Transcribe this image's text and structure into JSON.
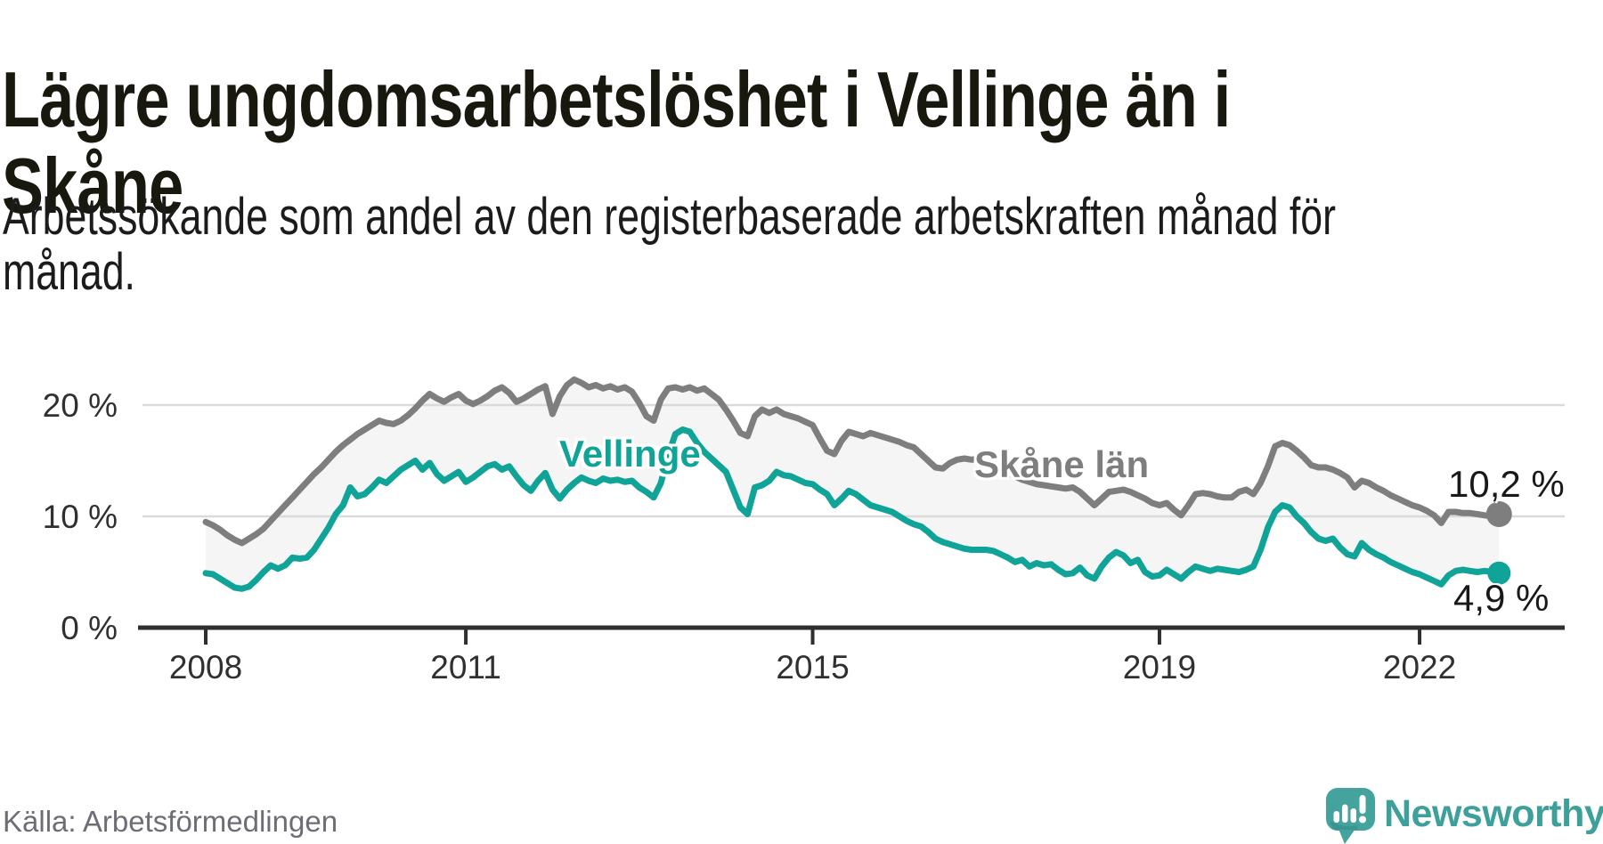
{
  "header": {
    "title_line1": "Lägre ungdomsarbetslöshet i Vellinge än i",
    "title_line2": "Skåne",
    "subtitle_line1": "Arbetssökande som andel av den registerbaserade arbetskraften månad för",
    "subtitle_line2": "månad."
  },
  "footer": {
    "source": "Källa: Arbetsförmedlingen",
    "brand": "Newsworthy"
  },
  "colors": {
    "vellinge_teal": "#10a398",
    "skane_gray": "#7e7e7e",
    "fill_between": "#f5f5f5",
    "gridline": "#dadada",
    "axis": "#2f2f2f",
    "axis_text": "#303030",
    "title_text": "#18180f",
    "source_text": "#6d6d76",
    "brand_teal": "#45a39e"
  },
  "chart_data": {
    "type": "line",
    "title": "Lägre ungdomsarbetslöshet i Vellinge än i Skåne",
    "subtitle": "Arbetssökande som andel av den registerbaserade arbetskraften månad för månad.",
    "x_unit": "month",
    "x_start": "2008-01",
    "x_end": "2022-12",
    "grid": "horizontal",
    "legend_position": "inline-labels",
    "ylim": [
      0,
      24
    ],
    "x_ticks": [
      {
        "year": 2008,
        "label": "2008"
      },
      {
        "year": 2011,
        "label": "2011"
      },
      {
        "year": 2015,
        "label": "2015"
      },
      {
        "year": 2019,
        "label": "2019"
      },
      {
        "year": 2022,
        "label": "2022"
      }
    ],
    "y_ticks": [
      {
        "value": 0,
        "label": "0 %"
      },
      {
        "value": 10,
        "label": "10 %"
      },
      {
        "value": 20,
        "label": "20 %"
      }
    ],
    "series": [
      {
        "name": "Skåne län",
        "color": "#7e7e7e",
        "end_label": "10,2 %",
        "end_value": 10.2,
        "values": [
          9.5,
          9.2,
          8.8,
          8.3,
          7.9,
          7.6,
          8.0,
          8.4,
          8.9,
          9.6,
          10.3,
          11.0,
          11.7,
          12.4,
          13.1,
          13.8,
          14.4,
          15.1,
          15.8,
          16.4,
          16.9,
          17.4,
          17.8,
          18.2,
          18.6,
          18.4,
          18.3,
          18.6,
          19.1,
          19.7,
          20.4,
          21.0,
          20.6,
          20.3,
          20.7,
          21.0,
          20.4,
          20.1,
          20.4,
          20.8,
          21.3,
          21.6,
          21.1,
          20.3,
          20.6,
          21.0,
          21.4,
          21.7,
          19.2,
          20.8,
          21.8,
          22.3,
          22.0,
          21.6,
          21.8,
          21.5,
          21.7,
          21.4,
          21.6,
          21.2,
          20.2,
          19.0,
          18.6,
          20.5,
          21.5,
          21.6,
          21.4,
          21.6,
          21.3,
          21.5,
          21.0,
          20.5,
          19.6,
          18.6,
          17.5,
          17.2,
          19.0,
          19.6,
          19.3,
          19.6,
          19.2,
          19.0,
          18.8,
          18.5,
          18.2,
          17.0,
          15.9,
          15.6,
          16.8,
          17.6,
          17.4,
          17.2,
          17.5,
          17.3,
          17.1,
          16.9,
          16.7,
          16.4,
          16.2,
          15.6,
          15.0,
          14.4,
          14.3,
          14.8,
          15.1,
          15.2,
          15.1,
          15.2,
          15.1,
          14.7,
          14.3,
          13.9,
          13.6,
          13.3,
          13.1,
          12.9,
          12.8,
          12.7,
          12.6,
          12.5,
          12.6,
          12.2,
          11.6,
          11.0,
          11.6,
          12.2,
          12.3,
          12.4,
          12.2,
          11.9,
          11.6,
          11.2,
          11.0,
          11.2,
          10.6,
          10.1,
          11.0,
          12.0,
          12.1,
          12.0,
          11.8,
          11.7,
          11.7,
          12.2,
          12.4,
          12.0,
          13.0,
          14.5,
          16.3,
          16.6,
          16.4,
          15.9,
          15.3,
          14.6,
          14.4,
          14.4,
          14.2,
          13.9,
          13.5,
          12.6,
          13.2,
          13.0,
          12.6,
          12.3,
          11.9,
          11.6,
          11.3,
          11.0,
          10.8,
          10.5,
          10.1,
          9.4,
          10.4,
          10.4,
          10.3,
          10.3,
          10.2,
          10.1,
          10.0,
          10.2
        ]
      },
      {
        "name": "Vellinge",
        "color": "#10a398",
        "end_label": "4,9 %",
        "end_value": 4.9,
        "values": [
          4.9,
          4.8,
          4.4,
          4.0,
          3.6,
          3.5,
          3.7,
          4.3,
          5.0,
          5.6,
          5.3,
          5.6,
          6.3,
          6.2,
          6.3,
          7.0,
          8.0,
          9.0,
          10.2,
          11.0,
          12.6,
          11.8,
          12.0,
          12.6,
          13.3,
          13.0,
          13.6,
          14.2,
          14.6,
          15.0,
          14.2,
          14.8,
          13.8,
          13.2,
          13.6,
          14.0,
          13.1,
          13.5,
          14.0,
          14.5,
          14.7,
          14.2,
          14.5,
          13.6,
          12.8,
          12.3,
          13.2,
          13.9,
          12.4,
          11.6,
          12.4,
          13.0,
          13.5,
          13.2,
          13.0,
          13.4,
          13.2,
          13.3,
          13.1,
          13.2,
          12.6,
          12.2,
          11.7,
          13.0,
          15.5,
          17.4,
          17.8,
          17.6,
          16.6,
          15.8,
          15.2,
          14.6,
          14.0,
          12.4,
          10.8,
          10.2,
          12.6,
          12.8,
          13.2,
          14.0,
          13.7,
          13.6,
          13.3,
          13.0,
          12.9,
          12.4,
          12.0,
          11.0,
          11.6,
          12.3,
          12.0,
          11.5,
          11.0,
          10.8,
          10.6,
          10.4,
          10.0,
          9.6,
          9.3,
          9.1,
          8.6,
          8.0,
          7.7,
          7.5,
          7.3,
          7.1,
          7.0,
          7.0,
          7.0,
          6.9,
          6.6,
          6.3,
          5.9,
          6.1,
          5.5,
          5.8,
          5.6,
          5.7,
          5.2,
          4.8,
          4.9,
          5.4,
          4.7,
          4.4,
          5.5,
          6.3,
          6.8,
          6.5,
          5.8,
          6.1,
          5.0,
          4.6,
          4.7,
          5.2,
          4.8,
          4.4,
          5.0,
          5.5,
          5.3,
          5.1,
          5.3,
          5.2,
          5.1,
          5.0,
          5.2,
          5.5,
          7.0,
          9.0,
          10.4,
          11.0,
          10.8,
          10.0,
          9.4,
          8.6,
          8.0,
          7.8,
          8.0,
          7.2,
          6.6,
          6.4,
          7.6,
          7.0,
          6.6,
          6.3,
          5.9,
          5.6,
          5.3,
          5.0,
          4.8,
          4.5,
          4.2,
          3.9,
          4.7,
          5.1,
          5.2,
          5.1,
          5.0,
          5.1,
          5.0,
          4.9
        ]
      }
    ]
  }
}
